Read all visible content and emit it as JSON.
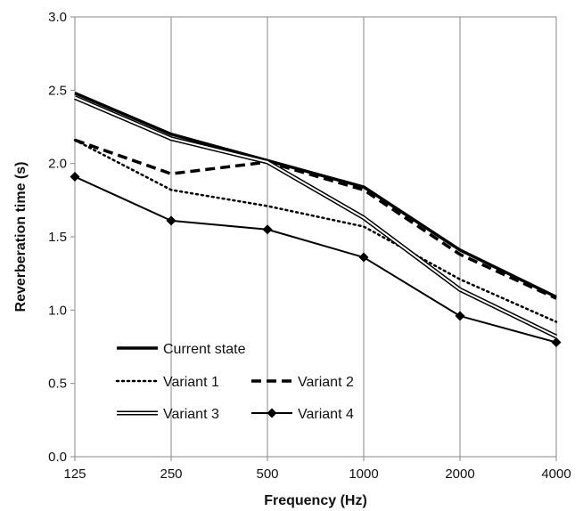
{
  "chart_data": {
    "type": "line",
    "xlabel": "Frequency (Hz)",
    "ylabel": "Reverberation time (s)",
    "x": [
      "125",
      "250",
      "500",
      "1000",
      "2000",
      "4000"
    ],
    "ylim": [
      0,
      3.0
    ],
    "yticks": [
      "0.0",
      "0.5",
      "1.0",
      "1.5",
      "2.0",
      "2.5",
      "3.0"
    ],
    "grid": "vertical",
    "legend_position": "bottom-left",
    "series": [
      {
        "name": "Current state",
        "style": "thick-solid",
        "color": "#000000",
        "values": [
          2.48,
          2.2,
          2.02,
          1.84,
          1.41,
          1.09
        ]
      },
      {
        "name": "Variant 1",
        "style": "dotted",
        "color": "#000000",
        "values": [
          2.16,
          1.82,
          1.71,
          1.57,
          1.21,
          0.92
        ]
      },
      {
        "name": "Variant 2",
        "style": "dashed",
        "color": "#000000",
        "values": [
          2.16,
          1.93,
          2.01,
          1.82,
          1.38,
          1.08
        ]
      },
      {
        "name": "Variant 3",
        "style": "double-line",
        "color": "#000000",
        "values": [
          2.45,
          2.17,
          2.01,
          1.63,
          1.14,
          0.82
        ]
      },
      {
        "name": "Variant 4",
        "style": "solid-diamond",
        "color": "#000000",
        "values": [
          1.91,
          1.61,
          1.55,
          1.36,
          0.96,
          0.78
        ]
      }
    ]
  }
}
